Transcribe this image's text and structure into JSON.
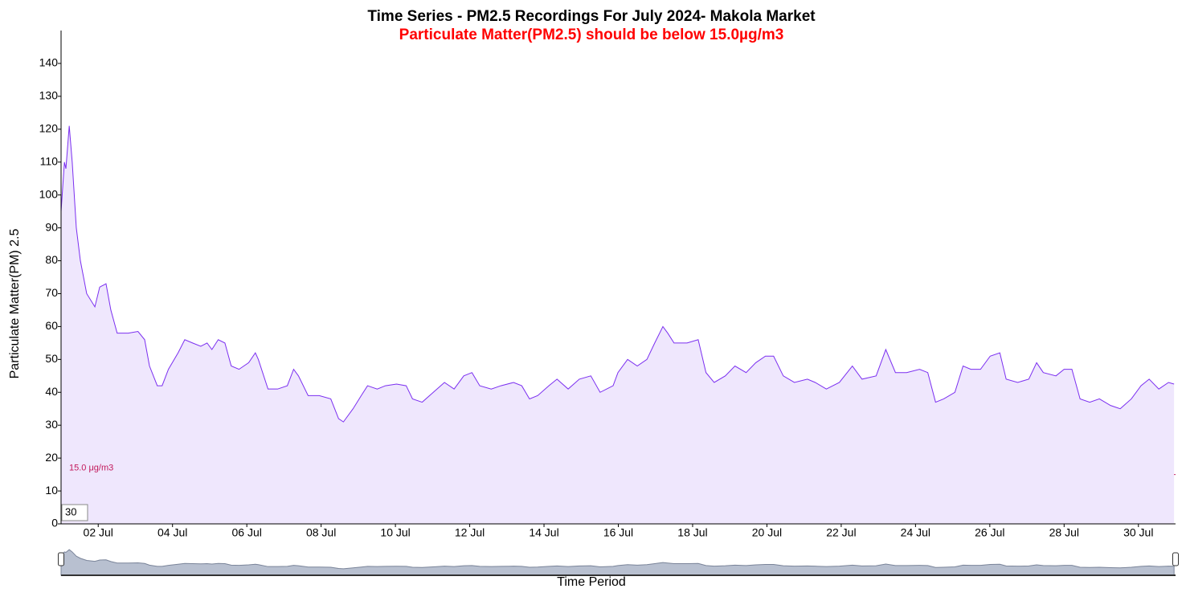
{
  "chart_data": {
    "type": "area",
    "title": "Time Series - PM2.5 Recordings For July 2024- Makola Market",
    "subtitle": "Particulate Matter(PM2.5) should be below 15.0µg/m3",
    "y_label": "Particulate Matter(PM) 2.5",
    "x_label": "Time Period",
    "roll_period": 30,
    "threshold": {
      "value": 15,
      "label": "15.0 μg/m3",
      "color": "#c2185b"
    },
    "xlim": [
      1,
      31
    ],
    "ylim": [
      0,
      150
    ],
    "xticks": [
      {
        "value": 2,
        "label": "02 Jul"
      },
      {
        "value": 4,
        "label": "04 Jul"
      },
      {
        "value": 6,
        "label": "06 Jul"
      },
      {
        "value": 8,
        "label": "08 Jul"
      },
      {
        "value": 10,
        "label": "10 Jul"
      },
      {
        "value": 12,
        "label": "12 Jul"
      },
      {
        "value": 14,
        "label": "14 Jul"
      },
      {
        "value": 16,
        "label": "16 Jul"
      },
      {
        "value": 18,
        "label": "18 Jul"
      },
      {
        "value": 20,
        "label": "20 Jul"
      },
      {
        "value": 22,
        "label": "22 Jul"
      },
      {
        "value": 24,
        "label": "24 Jul"
      },
      {
        "value": 26,
        "label": "26 Jul"
      },
      {
        "value": 28,
        "label": "28 Jul"
      },
      {
        "value": 30,
        "label": "30 Jul"
      }
    ],
    "yticks": [
      0,
      10,
      20,
      30,
      40,
      50,
      60,
      70,
      80,
      90,
      100,
      110,
      120,
      130,
      140
    ],
    "x": [
      1.0,
      1.09,
      1.13,
      1.22,
      1.3,
      1.41,
      1.52,
      1.69,
      1.91,
      2.04,
      2.21,
      2.34,
      2.51,
      2.81,
      3.07,
      3.25,
      3.38,
      3.59,
      3.72,
      3.89,
      4.15,
      4.33,
      4.54,
      4.76,
      4.93,
      5.06,
      5.23,
      5.41,
      5.58,
      5.79,
      6.05,
      6.23,
      6.31,
      6.57,
      6.83,
      7.09,
      7.26,
      7.39,
      7.65,
      7.95,
      8.26,
      8.47,
      8.6,
      8.86,
      9.08,
      9.25,
      9.51,
      9.73,
      10.03,
      10.29,
      10.46,
      10.72,
      11.02,
      11.32,
      11.58,
      11.84,
      12.06,
      12.27,
      12.58,
      12.84,
      13.18,
      13.4,
      13.61,
      13.83,
      14.13,
      14.35,
      14.65,
      14.95,
      15.26,
      15.51,
      15.86,
      15.99,
      16.25,
      16.51,
      16.77,
      16.98,
      17.2,
      17.33,
      17.5,
      17.85,
      18.15,
      18.36,
      18.58,
      18.88,
      19.14,
      19.44,
      19.7,
      19.96,
      20.18,
      20.44,
      20.74,
      21.09,
      21.3,
      21.6,
      21.95,
      22.3,
      22.56,
      22.94,
      23.2,
      23.46,
      23.76,
      24.11,
      24.33,
      24.54,
      24.76,
      25.06,
      25.28,
      25.49,
      25.75,
      26.01,
      26.27,
      26.44,
      26.75,
      27.05,
      27.26,
      27.44,
      27.78,
      28.0,
      28.21,
      28.43,
      28.69,
      28.95,
      29.25,
      29.51,
      29.81,
      30.07,
      30.29,
      30.55,
      30.81,
      30.96
    ],
    "series": [
      {
        "name": "PM2.5",
        "color": "#7b2ff0",
        "fill": "#efe7fd",
        "values": [
          95,
          110,
          108,
          121,
          110,
          90,
          80,
          70,
          66,
          72,
          73,
          65,
          58,
          58,
          58.5,
          56,
          48,
          42,
          42,
          47,
          52,
          56,
          55,
          54,
          55,
          53,
          56,
          55,
          48,
          47,
          49,
          52,
          50,
          41,
          41,
          42,
          47,
          45,
          39,
          39,
          38,
          32,
          31,
          35,
          39,
          42,
          41,
          42,
          42.5,
          42,
          38,
          37,
          40,
          43,
          41,
          45,
          46,
          42,
          41,
          42,
          43,
          42,
          38,
          39,
          42,
          44,
          41,
          44,
          45,
          40,
          42,
          46,
          50,
          48,
          50,
          55,
          60,
          58,
          55,
          55,
          56,
          46,
          43,
          45,
          48,
          46,
          49,
          51,
          51,
          45,
          43,
          44,
          43,
          41,
          43,
          48,
          44,
          45,
          53,
          46,
          46,
          47,
          46,
          37,
          38,
          40,
          48,
          47,
          47,
          51,
          52,
          44,
          43,
          44,
          49,
          46,
          45,
          47,
          47,
          38,
          37,
          38,
          36,
          35,
          38,
          42,
          44,
          41,
          43,
          42.5
        ]
      }
    ]
  }
}
